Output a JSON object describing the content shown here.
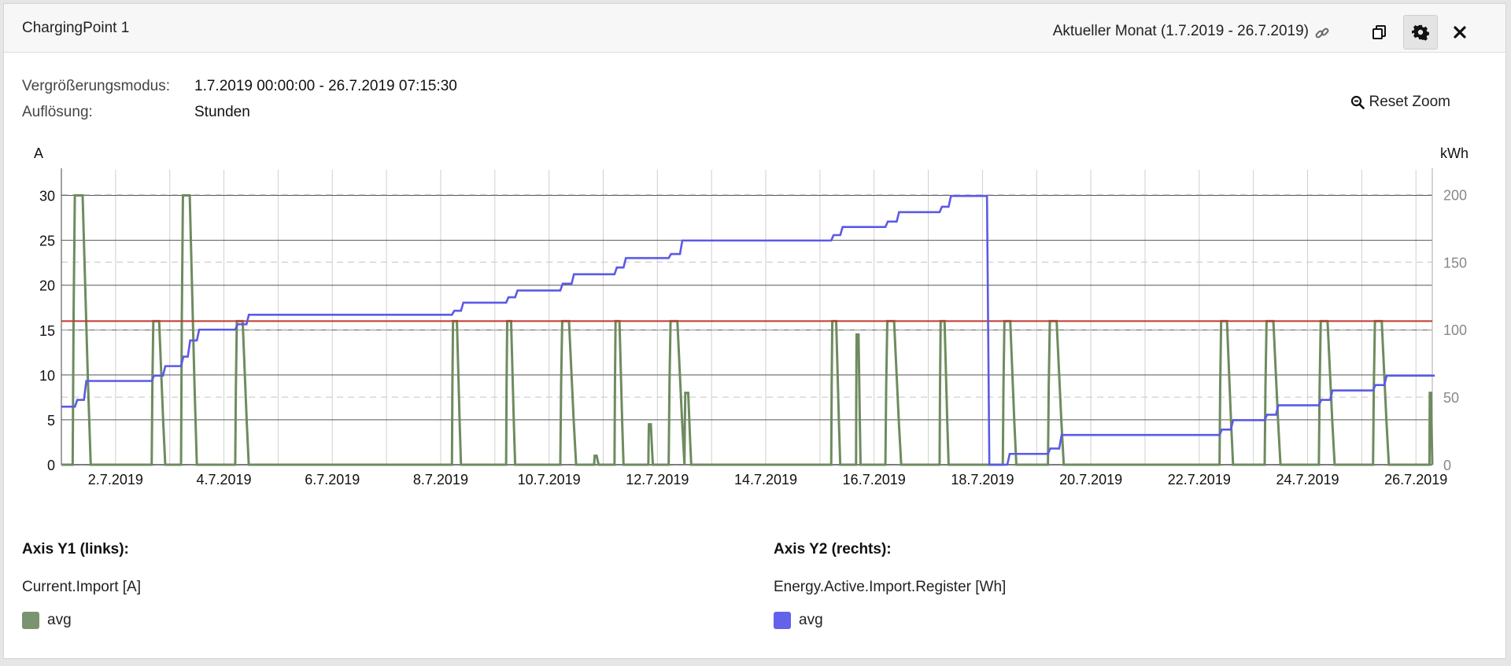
{
  "header": {
    "title": "ChargingPoint 1",
    "range_label": "Aktueller Monat (1.7.2019 - 26.7.2019)",
    "icons": [
      "link-icon",
      "copy-icon",
      "gear-icon",
      "close-icon"
    ]
  },
  "meta": {
    "zoom_mode_label": "Vergrößerungsmodus:",
    "zoom_mode_value": "1.7.2019 00:00:00 - 26.7.2019 07:15:30",
    "resolution_label": "Auflösung:",
    "resolution_value": "Stunden"
  },
  "reset_zoom_label": "Reset Zoom",
  "colors": {
    "current": "#6e8b5f",
    "energy": "#5a5ae6",
    "limit": "#c0392b"
  },
  "legend": {
    "y1_title": "Axis Y1 (links):",
    "y1_series": "Current.Import [A]",
    "y1_entry": "avg",
    "y2_title": "Axis Y2 (rechts):",
    "y2_series": "Energy.Active.Import.Register [Wh]",
    "y2_entry": "avg"
  },
  "chart_data": {
    "type": "line",
    "y1_label": "A",
    "y2_label": "kWh",
    "x_range": [
      "2019-07-01T00:00",
      "2019-07-26T07:15"
    ],
    "y1_range": [
      0,
      32.5
    ],
    "y2_range": [
      0,
      216
    ],
    "y1_ticks": [
      0,
      5,
      10,
      15,
      20,
      25,
      30
    ],
    "y2_ticks": [
      0,
      50,
      100,
      150,
      200
    ],
    "x_ticks": [
      "2019-07-02",
      "2019-07-04",
      "2019-07-06",
      "2019-07-08",
      "2019-07-10",
      "2019-07-12",
      "2019-07-14",
      "2019-07-16",
      "2019-07-18",
      "2019-07-20",
      "2019-07-22",
      "2019-07-24",
      "2019-07-26"
    ],
    "x_tick_labels": [
      "2.7.2019",
      "4.7.2019",
      "6.7.2019",
      "8.7.2019",
      "10.7.2019",
      "12.7.2019",
      "14.7.2019",
      "16.7.2019",
      "18.7.2019",
      "20.7.2019",
      "22.7.2019",
      "24.7.2019",
      "26.7.2019"
    ],
    "limit_line_y1": 16,
    "series": [
      {
        "name": "Current.Import [A] avg",
        "axis": "y1",
        "pulses": [
          {
            "start": "2019-07-01T05:00",
            "end": "2019-07-01T13:00",
            "peak": 30
          },
          {
            "start": "2019-07-02T16:00",
            "end": "2019-07-02T22:00",
            "peak": 16
          },
          {
            "start": "2019-07-03T05:00",
            "end": "2019-07-03T12:00",
            "peak": 30
          },
          {
            "start": "2019-07-04T05:00",
            "end": "2019-07-04T11:00",
            "peak": 16
          },
          {
            "start": "2019-07-08T05:00",
            "end": "2019-07-08T09:00",
            "peak": 16
          },
          {
            "start": "2019-07-09T05:00",
            "end": "2019-07-09T09:00",
            "peak": 16
          },
          {
            "start": "2019-07-10T05:00",
            "end": "2019-07-10T12:00",
            "peak": 16
          },
          {
            "start": "2019-07-10T20:00",
            "end": "2019-07-10T22:00",
            "peak": 1
          },
          {
            "start": "2019-07-11T05:00",
            "end": "2019-07-11T09:00",
            "peak": 16
          },
          {
            "start": "2019-07-11T20:00",
            "end": "2019-07-11T22:00",
            "peak": 4.5
          },
          {
            "start": "2019-07-12T05:00",
            "end": "2019-07-12T12:00",
            "peak": 16
          },
          {
            "start": "2019-07-12T12:00",
            "end": "2019-07-12T15:00",
            "peak": 8
          },
          {
            "start": "2019-07-15T05:00",
            "end": "2019-07-15T09:00",
            "peak": 16
          },
          {
            "start": "2019-07-15T16:00",
            "end": "2019-07-15T18:00",
            "peak": 14.5
          },
          {
            "start": "2019-07-16T05:00",
            "end": "2019-07-16T12:00",
            "peak": 16
          },
          {
            "start": "2019-07-17T05:00",
            "end": "2019-07-17T09:00",
            "peak": 16
          },
          {
            "start": "2019-07-18T09:00",
            "end": "2019-07-18T15:00",
            "peak": 16
          },
          {
            "start": "2019-07-19T05:00",
            "end": "2019-07-19T12:00",
            "peak": 16
          },
          {
            "start": "2019-07-22T09:00",
            "end": "2019-07-22T15:00",
            "peak": 16
          },
          {
            "start": "2019-07-23T05:00",
            "end": "2019-07-23T12:00",
            "peak": 16
          },
          {
            "start": "2019-07-24T05:00",
            "end": "2019-07-24T12:00",
            "peak": 16
          },
          {
            "start": "2019-07-25T05:00",
            "end": "2019-07-25T12:00",
            "peak": 16
          },
          {
            "start": "2019-07-26T06:00",
            "end": "2019-07-26T07:15",
            "peak": 8
          }
        ]
      },
      {
        "name": "Energy.Active.Import.Register [Wh] avg",
        "axis": "y2",
        "steps": [
          {
            "t": "2019-07-01T00:00",
            "v": 43
          },
          {
            "t": "2019-07-01T06:00",
            "v": 48
          },
          {
            "t": "2019-07-01T10:00",
            "v": 62
          },
          {
            "t": "2019-07-02T16:00",
            "v": 66
          },
          {
            "t": "2019-07-02T21:00",
            "v": 73
          },
          {
            "t": "2019-07-03T05:00",
            "v": 80
          },
          {
            "t": "2019-07-03T08:00",
            "v": 92
          },
          {
            "t": "2019-07-03T12:00",
            "v": 100
          },
          {
            "t": "2019-07-04T05:00",
            "v": 104
          },
          {
            "t": "2019-07-04T10:00",
            "v": 111
          },
          {
            "t": "2019-07-08T05:00",
            "v": 114
          },
          {
            "t": "2019-07-08T09:00",
            "v": 120
          },
          {
            "t": "2019-07-09T05:00",
            "v": 124
          },
          {
            "t": "2019-07-09T09:00",
            "v": 129
          },
          {
            "t": "2019-07-10T05:00",
            "v": 134
          },
          {
            "t": "2019-07-10T10:00",
            "v": 141
          },
          {
            "t": "2019-07-11T05:00",
            "v": 146
          },
          {
            "t": "2019-07-11T09:00",
            "v": 153
          },
          {
            "t": "2019-07-12T05:00",
            "v": 156
          },
          {
            "t": "2019-07-12T10:00",
            "v": 166
          },
          {
            "t": "2019-07-15T05:00",
            "v": 170
          },
          {
            "t": "2019-07-15T09:00",
            "v": 176
          },
          {
            "t": "2019-07-16T05:00",
            "v": 180
          },
          {
            "t": "2019-07-16T10:00",
            "v": 187
          },
          {
            "t": "2019-07-17T05:00",
            "v": 191
          },
          {
            "t": "2019-07-17T09:00",
            "v": 199
          },
          {
            "t": "2019-07-18T00:00",
            "v": 199
          },
          {
            "t": "2019-07-18T02:00",
            "v": 0
          },
          {
            "t": "2019-07-18T11:00",
            "v": 8
          },
          {
            "t": "2019-07-19T05:00",
            "v": 12
          },
          {
            "t": "2019-07-19T10:00",
            "v": 22
          },
          {
            "t": "2019-07-22T09:00",
            "v": 26
          },
          {
            "t": "2019-07-22T14:00",
            "v": 33
          },
          {
            "t": "2019-07-23T05:00",
            "v": 37
          },
          {
            "t": "2019-07-23T10:00",
            "v": 44
          },
          {
            "t": "2019-07-24T05:00",
            "v": 48
          },
          {
            "t": "2019-07-24T10:00",
            "v": 55
          },
          {
            "t": "2019-07-25T05:00",
            "v": 59
          },
          {
            "t": "2019-07-25T10:00",
            "v": 66
          },
          {
            "t": "2019-07-26T07:15",
            "v": 66
          }
        ]
      }
    ],
    "grid": true
  }
}
